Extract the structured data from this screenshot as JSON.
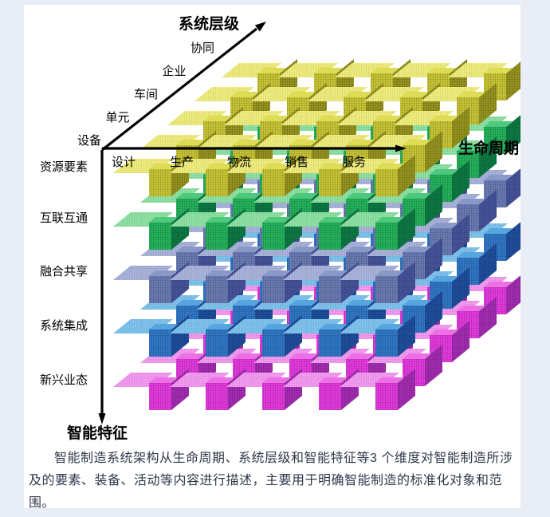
{
  "page": {
    "background": "#e9edf5",
    "panel_background": "#ffffff"
  },
  "diagram": {
    "axis_system_level": {
      "title": "系统层级",
      "levels": [
        "设备",
        "单元",
        "车间",
        "企业",
        "协同"
      ]
    },
    "axis_life_cycle": {
      "title": "生命周期",
      "stages": [
        "设计",
        "生产",
        "物流",
        "销售",
        "服务"
      ]
    },
    "axis_intelligent_feature": {
      "title": "智能特征",
      "features": [
        "资源要素",
        "互联互通",
        "融合共享",
        "系统集成",
        "新兴业态"
      ]
    },
    "axis_color": "#000000",
    "row_colors": [
      {
        "feature": "资源要素",
        "shelf": "#f1ee7e",
        "top": "#dedb55",
        "front": "#c9c636",
        "side": "#97941f"
      },
      {
        "feature": "互联互通",
        "shelf": "#8fe3a4",
        "top": "#4cc97d",
        "front": "#25b35c",
        "side": "#0d7a44"
      },
      {
        "feature": "融合共享",
        "shelf": "#aab4dc",
        "top": "#8a98c8",
        "front": "#6b7cb4",
        "side": "#47549c"
      },
      {
        "feature": "系统集成",
        "shelf": "#7fc4ee",
        "top": "#56a5e0",
        "front": "#3178c8",
        "side": "#1f4f9e"
      },
      {
        "feature": "新兴业态",
        "shelf": "#f59bf2",
        "top": "#ee6ee8",
        "front": "#e63ae0",
        "side": "#a52db4"
      }
    ]
  },
  "caption": {
    "text": "智能制造系统架构从生命周期、系统层级和智能特征等3 个维度对智能制造所涉及的要素、装备、活动等内容进行描述，主要用于明确智能制造的标准化对象和范围。"
  }
}
